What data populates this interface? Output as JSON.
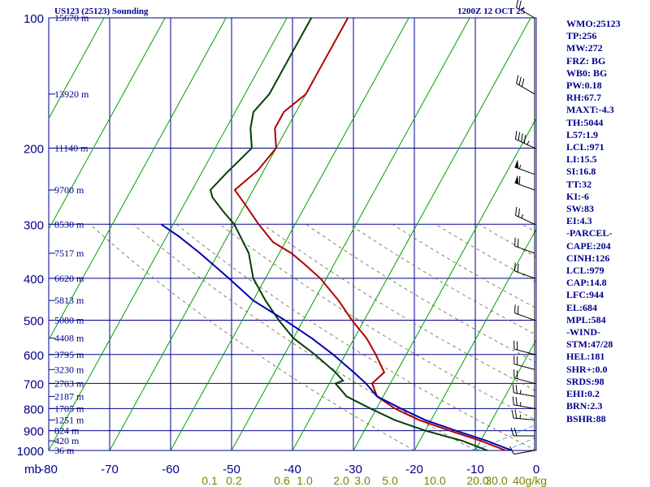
{
  "header": {
    "station": "US123 (25123) Sounding",
    "valid_time": "1200Z 12 OCT 25"
  },
  "indices": [
    "WMO:25123",
    "TP:256",
    "MW:272",
    "FRZ: BG",
    "WB0: BG",
    "PW:0.18",
    "RH:67.7",
    "MAXT:-4.3",
    "TH:5044",
    "L57:1.9",
    "LCL:971",
    "LI:15.5",
    "SI:16.8",
    "TT:32",
    "KI:-6",
    "SW:83",
    "EI:4.3",
    "-PARCEL-",
    "CAPE:204",
    "CINH:126",
    "LCL:979",
    "CAP:14.8",
    "LFC:944",
    "EL:684",
    "MPL:584",
    "-WIND-",
    "STM:47/28",
    "HEL:181",
    "SHR+:0.0",
    "SRDS:98",
    "EHI:0.2",
    "BRN:2.3",
    "BSHR:88"
  ],
  "colors": {
    "grid": "#00008b",
    "isotherm": "#00a000",
    "dry_adiabat": "#6b6b2a",
    "moist_adiabat": "#3aa0d0",
    "temperature": "#b00000",
    "dewpoint": "#004000",
    "parcel": "#0000b0",
    "mixing_ratio_labels": "#808000"
  },
  "chart_data": {
    "type": "line",
    "title": "US123 (25123) Sounding",
    "xlabel": "",
    "ylabel": "",
    "pressure_axis_label": "mb",
    "ylim": [
      1000,
      100
    ],
    "xlim": [
      -80,
      0
    ],
    "pressure_ticks": [
      100,
      200,
      300,
      400,
      500,
      600,
      700,
      800,
      900,
      1000
    ],
    "pressure_tick_labels": [
      "100",
      "200",
      "300",
      "400",
      "500",
      "600",
      "700",
      "800",
      "900",
      "1000"
    ],
    "temperature_ticks": [
      -80,
      -70,
      -60,
      -50,
      -40,
      -30,
      -20,
      -10,
      0
    ],
    "temperature_tick_labels": [
      "-80",
      "-70",
      "-60",
      "-50",
      "-40",
      "-30",
      "-20",
      "-10",
      "0"
    ],
    "mixing_ratio_labels": [
      "0.1",
      "0.2",
      "0.6",
      "1.0",
      "2.0",
      "3.0",
      "5.0",
      "10.0",
      "20.0",
      "30.0",
      "40g/kg"
    ],
    "height_labels": [
      {
        "p": 100,
        "text": "15670 m"
      },
      {
        "p": 150,
        "text": "13920 m"
      },
      {
        "p": 200,
        "text": "11140 m"
      },
      {
        "p": 250,
        "text": "9700 m"
      },
      {
        "p": 300,
        "text": "8530 m"
      },
      {
        "p": 350,
        "text": "7517 m"
      },
      {
        "p": 400,
        "text": "6620 m"
      },
      {
        "p": 450,
        "text": "5813 m"
      },
      {
        "p": 500,
        "text": "5080 m"
      },
      {
        "p": 550,
        "text": "4408 m"
      },
      {
        "p": 600,
        "text": "3795 m"
      },
      {
        "p": 650,
        "text": "3230 m"
      },
      {
        "p": 700,
        "text": "2703 m"
      },
      {
        "p": 750,
        "text": "2187 m"
      },
      {
        "p": 800,
        "text": "1705 m"
      },
      {
        "p": 850,
        "text": "1251 m"
      },
      {
        "p": 900,
        "text": "824 m"
      },
      {
        "p": 950,
        "text": "420 m"
      },
      {
        "p": 1000,
        "text": "36 m"
      }
    ],
    "series": [
      {
        "key": "temperature",
        "values": [
          [
            1000,
            -5
          ],
          [
            950,
            -10
          ],
          [
            900,
            -16
          ],
          [
            850,
            -22
          ],
          [
            800,
            -27
          ],
          [
            750,
            -31
          ],
          [
            700,
            -33
          ],
          [
            660,
            -32
          ],
          [
            600,
            -35
          ],
          [
            550,
            -38
          ],
          [
            500,
            -42
          ],
          [
            450,
            -46
          ],
          [
            400,
            -51
          ],
          [
            370,
            -55
          ],
          [
            350,
            -58
          ],
          [
            330,
            -62
          ],
          [
            300,
            -66
          ],
          [
            270,
            -70
          ],
          [
            250,
            -73
          ],
          [
            225,
            -71
          ],
          [
            200,
            -70
          ],
          [
            180,
            -72
          ],
          [
            165,
            -72
          ],
          [
            150,
            -70
          ],
          [
            130,
            -70
          ],
          [
            100,
            -70
          ]
        ]
      },
      {
        "key": "dewpoint",
        "values": [
          [
            1000,
            -8
          ],
          [
            950,
            -13
          ],
          [
            900,
            -20
          ],
          [
            850,
            -26
          ],
          [
            800,
            -31
          ],
          [
            750,
            -36
          ],
          [
            700,
            -39
          ],
          [
            690,
            -38
          ],
          [
            660,
            -40
          ],
          [
            600,
            -45
          ],
          [
            550,
            -50
          ],
          [
            500,
            -54
          ],
          [
            450,
            -58
          ],
          [
            400,
            -62
          ],
          [
            350,
            -65
          ],
          [
            300,
            -70
          ],
          [
            280,
            -73
          ],
          [
            260,
            -76
          ],
          [
            250,
            -77
          ],
          [
            230,
            -76
          ],
          [
            200,
            -74
          ],
          [
            180,
            -76
          ],
          [
            165,
            -77
          ],
          [
            150,
            -76
          ],
          [
            130,
            -76
          ],
          [
            110,
            -76
          ],
          [
            100,
            -76
          ]
        ]
      },
      {
        "key": "parcel",
        "values": [
          [
            1000,
            -4
          ],
          [
            950,
            -9
          ],
          [
            900,
            -15
          ],
          [
            850,
            -21
          ],
          [
            800,
            -26
          ],
          [
            750,
            -31
          ],
          [
            700,
            -34
          ],
          [
            660,
            -37
          ],
          [
            600,
            -42
          ],
          [
            550,
            -47
          ],
          [
            500,
            -53
          ],
          [
            450,
            -60
          ],
          [
            400,
            -66
          ],
          [
            350,
            -73
          ],
          [
            320,
            -78
          ],
          [
            300,
            -82
          ]
        ]
      }
    ],
    "wind_barbs": [
      {
        "p": 1000,
        "dir": 260,
        "spd": 10
      },
      {
        "p": 925,
        "dir": 270,
        "spd": 20
      },
      {
        "p": 850,
        "dir": 275,
        "spd": 25
      },
      {
        "p": 800,
        "dir": 280,
        "spd": 25
      },
      {
        "p": 750,
        "dir": 280,
        "spd": 25
      },
      {
        "p": 700,
        "dir": 285,
        "spd": 20
      },
      {
        "p": 650,
        "dir": 285,
        "spd": 20
      },
      {
        "p": 600,
        "dir": 285,
        "spd": 20
      },
      {
        "p": 500,
        "dir": 290,
        "spd": 20
      },
      {
        "p": 400,
        "dir": 290,
        "spd": 20
      },
      {
        "p": 350,
        "dir": 290,
        "spd": 20
      },
      {
        "p": 300,
        "dir": 295,
        "spd": 25
      },
      {
        "p": 250,
        "dir": 290,
        "spd": 60
      },
      {
        "p": 230,
        "dir": 290,
        "spd": 55
      },
      {
        "p": 200,
        "dir": 295,
        "spd": 45
      },
      {
        "p": 150,
        "dir": 300,
        "spd": 30
      },
      {
        "p": 100,
        "dir": 300,
        "spd": 25
      }
    ]
  }
}
